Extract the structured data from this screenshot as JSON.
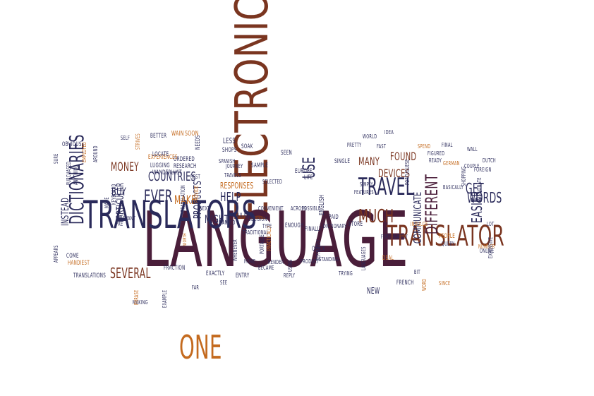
{
  "palette": {
    "navy": "#2a2a5a",
    "plum": "#4a1e3a",
    "brown": "#7a3520",
    "orange": "#c46a1e"
  },
  "words": [
    {
      "text": "ELECTRONIC",
      "color": "brown"
    },
    {
      "text": "LANGUAGE",
      "color": "plum"
    },
    {
      "text": "TRANSLATORS",
      "color": "navy"
    },
    {
      "text": "TRANSLATOR",
      "color": "brown"
    },
    {
      "text": "ONE",
      "color": "orange"
    },
    {
      "text": "TRAVEL",
      "color": "navy"
    },
    {
      "text": "DICTIONARIES",
      "color": "navy"
    },
    {
      "text": "EVER",
      "color": "navy"
    },
    {
      "text": "USE",
      "color": "navy"
    },
    {
      "text": "MUCH",
      "color": "brown"
    },
    {
      "text": "MANY",
      "color": "brown"
    },
    {
      "text": "FOUND",
      "color": "brown"
    },
    {
      "text": "DEVICES",
      "color": "brown"
    },
    {
      "text": "GET",
      "color": "navy"
    },
    {
      "text": "WORDS",
      "color": "navy"
    },
    {
      "text": "EASIER",
      "color": "navy"
    },
    {
      "text": "DIFFERENT",
      "color": "plum"
    },
    {
      "text": "COMMUNICATE",
      "color": "navy"
    },
    {
      "text": "SEVERAL",
      "color": "brown"
    },
    {
      "text": "COUNTRIES",
      "color": "navy"
    },
    {
      "text": "MONEY",
      "color": "brown"
    },
    {
      "text": "MAKE",
      "color": "orange"
    },
    {
      "text": "HELP",
      "color": "navy"
    },
    {
      "text": "MIGHT",
      "color": "navy"
    },
    {
      "text": "PRODUCTS",
      "color": "navy"
    },
    {
      "text": "PARTICULAR",
      "color": "navy"
    },
    {
      "text": "INSTEAD",
      "color": "navy"
    },
    {
      "text": "BUY",
      "color": "navy"
    },
    {
      "text": "RESPONSES",
      "color": "orange"
    },
    {
      "text": "TRANSLATION",
      "color": "navy"
    },
    {
      "text": "LESS",
      "color": "navy"
    },
    {
      "text": "SOAK",
      "color": "navy"
    },
    {
      "text": "SHOPS",
      "color": "navy"
    },
    {
      "text": "NEEDS",
      "color": "navy"
    },
    {
      "text": "WAIN",
      "color": "orange"
    },
    {
      "text": "SOON",
      "color": "orange"
    },
    {
      "text": "BETTER",
      "color": "navy"
    },
    {
      "text": "SELF",
      "color": "navy"
    },
    {
      "text": "STRIVES",
      "color": "orange"
    },
    {
      "text": "EXPERIENCES",
      "color": "orange"
    },
    {
      "text": "LOCATE",
      "color": "navy"
    },
    {
      "text": "LUGGING",
      "color": "navy"
    },
    {
      "text": "WANDERLUST",
      "color": "navy"
    },
    {
      "text": "ORDERED",
      "color": "navy"
    },
    {
      "text": "RESEARCH",
      "color": "navy"
    },
    {
      "text": "SPANISH",
      "color": "navy"
    },
    {
      "text": "JOURNEY",
      "color": "navy"
    },
    {
      "text": "TRAVELS",
      "color": "navy"
    },
    {
      "text": "SAMPLE",
      "color": "navy"
    },
    {
      "text": "SELECTED",
      "color": "navy"
    },
    {
      "text": "PROVIDE",
      "color": "orange"
    },
    {
      "text": "ENGLISH",
      "color": "navy"
    },
    {
      "text": "EUROPE",
      "color": "navy"
    },
    {
      "text": "LIFE",
      "color": "navy"
    },
    {
      "text": "SEEN",
      "color": "navy"
    },
    {
      "text": "SINGLE",
      "color": "navy"
    },
    {
      "text": "PRETTY",
      "color": "navy"
    },
    {
      "text": "WORLD",
      "color": "navy"
    },
    {
      "text": "FAST",
      "color": "navy"
    },
    {
      "text": "IDEA",
      "color": "navy"
    },
    {
      "text": "PORTUGUESE",
      "color": "navy"
    },
    {
      "text": "SPEND",
      "color": "orange"
    },
    {
      "text": "FINAL",
      "color": "navy"
    },
    {
      "text": "WALL",
      "color": "navy"
    },
    {
      "text": "READY",
      "color": "navy"
    },
    {
      "text": "FIGURED",
      "color": "navy"
    },
    {
      "text": "GERMAN",
      "color": "orange"
    },
    {
      "text": "COUPLE",
      "color": "navy"
    },
    {
      "text": "FOREIGN",
      "color": "navy"
    },
    {
      "text": "DUTCH",
      "color": "navy"
    },
    {
      "text": "SHOPPING",
      "color": "navy"
    },
    {
      "text": "PASSIONATE",
      "color": "navy"
    },
    {
      "text": "BASICALLY",
      "color": "navy"
    },
    {
      "text": "EVEN",
      "color": "navy"
    },
    {
      "text": "LOT",
      "color": "navy"
    },
    {
      "text": "NUMBER",
      "color": "orange"
    },
    {
      "text": "EXPENSIVE",
      "color": "navy"
    },
    {
      "text": "ONLINE",
      "color": "navy"
    },
    {
      "text": "PEOPLE",
      "color": "orange"
    },
    {
      "text": "QUERY",
      "color": "navy"
    },
    {
      "text": "INDULGE",
      "color": "orange"
    },
    {
      "text": "FEATURES",
      "color": "navy"
    },
    {
      "text": "SIMPLY",
      "color": "navy"
    },
    {
      "text": "FORTUNATELY",
      "color": "navy"
    },
    {
      "text": "LANGUAGES",
      "color": "navy"
    },
    {
      "text": "STORE",
      "color": "navy"
    },
    {
      "text": "DEAL",
      "color": "orange"
    },
    {
      "text": "NEW",
      "color": "navy"
    },
    {
      "text": "FRENCH",
      "color": "navy"
    },
    {
      "text": "BIT",
      "color": "navy"
    },
    {
      "text": "WORD",
      "color": "orange"
    },
    {
      "text": "SINCE",
      "color": "orange"
    },
    {
      "text": "TRYING",
      "color": "navy"
    },
    {
      "text": "REPLY",
      "color": "navy"
    },
    {
      "text": "QUICK",
      "color": "navy"
    },
    {
      "text": "STANDING",
      "color": "navy"
    },
    {
      "text": "DEFINITELY",
      "color": "navy"
    },
    {
      "text": "DICTIONARY",
      "color": "navy"
    },
    {
      "text": "PAID",
      "color": "navy"
    },
    {
      "text": "FINALLY",
      "color": "navy"
    },
    {
      "text": "ENOUGH",
      "color": "navy"
    },
    {
      "text": "POSSIBLE",
      "color": "navy"
    },
    {
      "text": "ACROSS",
      "color": "navy"
    },
    {
      "text": "USING",
      "color": "navy"
    },
    {
      "text": "PRODUCT",
      "color": "navy"
    },
    {
      "text": "CONVENIENT",
      "color": "navy"
    },
    {
      "text": "PORTABLE",
      "color": "navy"
    },
    {
      "text": "RENDER",
      "color": "navy"
    },
    {
      "text": "PRACTICALLY",
      "color": "orange"
    },
    {
      "text": "TRADITIONAL",
      "color": "navy"
    },
    {
      "text": "AVAILABLE",
      "color": "navy"
    },
    {
      "text": "DECISION",
      "color": "navy"
    },
    {
      "text": "ENTRY",
      "color": "navy"
    },
    {
      "text": "BECAME",
      "color": "navy"
    },
    {
      "text": "HOME",
      "color": "navy"
    },
    {
      "text": "WHENEVER",
      "color": "navy"
    },
    {
      "text": "EXACTLY",
      "color": "navy"
    },
    {
      "text": "SEE",
      "color": "navy"
    },
    {
      "text": "FAR",
      "color": "navy"
    },
    {
      "text": "WANTED",
      "color": "navy"
    },
    {
      "text": "NEXT",
      "color": "navy"
    },
    {
      "text": "TYPE",
      "color": "navy"
    },
    {
      "text": "WORTH",
      "color": "orange"
    },
    {
      "text": "FRACTION",
      "color": "navy"
    },
    {
      "text": "EXAMPLE",
      "color": "navy"
    },
    {
      "text": "MAKING",
      "color": "navy"
    },
    {
      "text": "PHRASE",
      "color": "orange"
    },
    {
      "text": "TRANSLATIONS",
      "color": "navy"
    },
    {
      "text": "RELEVANT",
      "color": "navy"
    },
    {
      "text": "PRE",
      "color": "navy"
    },
    {
      "text": "MADE",
      "color": "navy"
    },
    {
      "text": "KEYBOARD",
      "color": "navy"
    },
    {
      "text": "AROUND",
      "color": "navy"
    },
    {
      "text": "OBVIOUS",
      "color": "navy"
    },
    {
      "text": "SURE",
      "color": "navy"
    },
    {
      "text": "PURCHASED",
      "color": "navy"
    },
    {
      "text": "ANYTHING",
      "color": "navy"
    },
    {
      "text": "EMPLOYED",
      "color": "orange"
    },
    {
      "text": "COME",
      "color": "navy"
    },
    {
      "text": "APPEARS",
      "color": "navy"
    },
    {
      "text": "HANDIEST",
      "color": "orange"
    },
    {
      "text": "BEST",
      "color": "navy"
    }
  ]
}
